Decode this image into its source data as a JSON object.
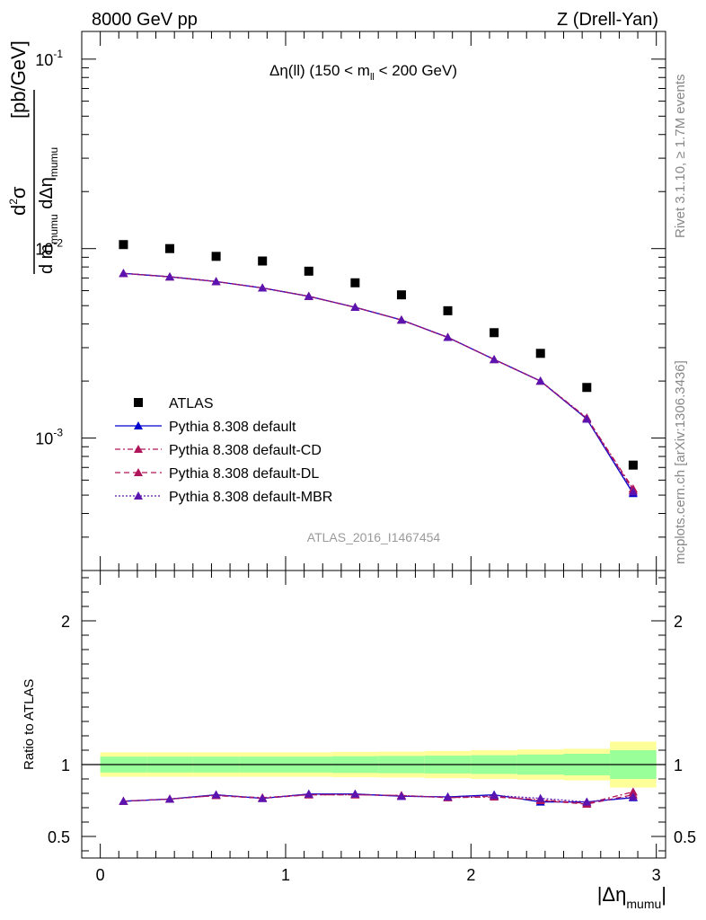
{
  "header": {
    "left": "8000 GeV pp",
    "right": "Z (Drell-Yan)"
  },
  "side_labels": {
    "rivet": "Rivet 3.1.10, ≥ 1.7M events",
    "mcplots": "mcplots.cern.ch [arXiv:1306.3436]"
  },
  "annotation": {
    "main": "Δη(ll) (150 < m",
    "sub": "ll",
    "tail": " < 200 GeV)"
  },
  "watermark": "ATLAS_2016_I1467454",
  "ylabel_unit": "[pb/GeV]",
  "ratio_ylabel": "Ratio to ATLAS",
  "xlabel": "|Δη",
  "xlabel_sub": "mumu",
  "colors": {
    "data": "#000000",
    "default": "#0000cc",
    "cd": "#b0145a",
    "dl": "#b0145a",
    "mbr": "#5c14b0",
    "band_yellow": "#ffff99",
    "band_green": "#99ff99"
  },
  "chart_data": [
    {
      "type": "scatter",
      "panel": "main",
      "yscale": "log",
      "xlim": [
        -0.1,
        3.05
      ],
      "ylim": [
        0.0002,
        0.14
      ],
      "y_ticks": [
        "10^{-3}",
        "10^{-2}",
        "10^{-1}"
      ],
      "legend": [
        "ATLAS",
        "Pythia 8.308 default",
        "Pythia 8.308 default-CD",
        "Pythia 8.308 default-DL",
        "Pythia 8.308 default-MBR"
      ],
      "legend_position": "lower-left",
      "x": [
        0.125,
        0.375,
        0.625,
        0.875,
        1.125,
        1.375,
        1.625,
        1.875,
        2.125,
        2.375,
        2.625,
        2.875
      ],
      "series": [
        {
          "name": "ATLAS",
          "values": [
            0.0105,
            0.01,
            0.0091,
            0.0086,
            0.0076,
            0.0066,
            0.0057,
            0.0047,
            0.0036,
            0.0028,
            0.00185,
            0.00072
          ]
        },
        {
          "name": "Pythia 8.308 default",
          "values": [
            0.0074,
            0.0071,
            0.0067,
            0.0062,
            0.0056,
            0.0049,
            0.0042,
            0.0034,
            0.0026,
            0.002,
            0.00126,
            0.00051
          ]
        },
        {
          "name": "Pythia 8.308 default-CD",
          "values": [
            0.0074,
            0.0071,
            0.0067,
            0.0062,
            0.0056,
            0.0049,
            0.0042,
            0.0034,
            0.0026,
            0.002,
            0.00128,
            0.00054
          ]
        },
        {
          "name": "Pythia 8.308 default-DL",
          "values": [
            0.0074,
            0.0071,
            0.0067,
            0.0062,
            0.0056,
            0.0049,
            0.0042,
            0.0034,
            0.0026,
            0.002,
            0.00127,
            0.00053
          ]
        },
        {
          "name": "Pythia 8.308 default-MBR",
          "values": [
            0.0074,
            0.0071,
            0.0067,
            0.0062,
            0.0056,
            0.0049,
            0.0042,
            0.0034,
            0.0026,
            0.002,
            0.00126,
            0.00052
          ]
        }
      ]
    },
    {
      "type": "line",
      "panel": "ratio",
      "xlim": [
        -0.1,
        3.05
      ],
      "ylim": [
        0.35,
        2.35
      ],
      "y_ticks": [
        "0.5",
        "1",
        "2"
      ],
      "x_ticks": [
        "0",
        "1",
        "2",
        "3"
      ],
      "x": [
        0.125,
        0.375,
        0.625,
        0.875,
        1.125,
        1.375,
        1.625,
        1.875,
        2.125,
        2.375,
        2.625,
        2.875
      ],
      "bin_edges": [
        0,
        0.25,
        0.5,
        0.75,
        1.0,
        1.25,
        1.5,
        1.75,
        2.0,
        2.25,
        2.5,
        2.75,
        3.0
      ],
      "band_green": [
        0.055,
        0.055,
        0.055,
        0.055,
        0.055,
        0.058,
        0.06,
        0.062,
        0.065,
        0.07,
        0.075,
        0.1
      ],
      "band_yellow": [
        0.085,
        0.085,
        0.085,
        0.085,
        0.085,
        0.088,
        0.09,
        0.095,
        0.1,
        0.105,
        0.11,
        0.16
      ],
      "series": [
        {
          "name": "Pythia 8.308 default",
          "values": [
            0.745,
            0.76,
            0.79,
            0.765,
            0.795,
            0.795,
            0.78,
            0.775,
            0.79,
            0.74,
            0.74,
            0.77
          ]
        },
        {
          "name": "Pythia 8.308 default-CD",
          "values": [
            0.745,
            0.76,
            0.785,
            0.77,
            0.79,
            0.79,
            0.785,
            0.77,
            0.775,
            0.755,
            0.73,
            0.81
          ]
        },
        {
          "name": "Pythia 8.308 default-DL",
          "values": [
            0.745,
            0.76,
            0.785,
            0.765,
            0.79,
            0.79,
            0.785,
            0.77,
            0.78,
            0.75,
            0.725,
            0.79
          ]
        },
        {
          "name": "Pythia 8.308 default-MBR",
          "values": [
            0.745,
            0.76,
            0.79,
            0.765,
            0.795,
            0.795,
            0.78,
            0.775,
            0.785,
            0.765,
            0.74,
            0.775
          ]
        }
      ]
    }
  ]
}
